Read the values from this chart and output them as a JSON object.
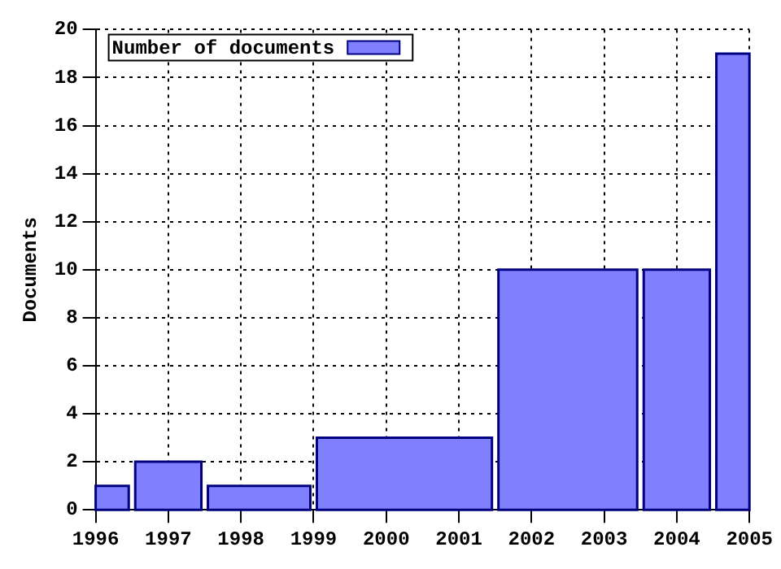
{
  "chart_data": {
    "type": "histogram",
    "ylabel": "Documents",
    "bins": [
      1996,
      1996.5,
      1997.5,
      1999,
      2001.5,
      2003.5,
      2004.5,
      2005
    ],
    "series": [
      {
        "name": "Number of documents",
        "color": "#8080ff",
        "values": [
          1,
          2,
          1,
          3,
          10,
          10,
          19
        ]
      }
    ],
    "xlim": [
      1996,
      2005
    ],
    "xticks": [
      1996,
      1997,
      1998,
      1999,
      2000,
      2001,
      2002,
      2003,
      2004,
      2005
    ],
    "ylim": [
      0,
      20
    ],
    "yticks": [
      0,
      2,
      4,
      6,
      8,
      10,
      12,
      14,
      16,
      18,
      20
    ],
    "grid": true,
    "legend": "top left"
  }
}
